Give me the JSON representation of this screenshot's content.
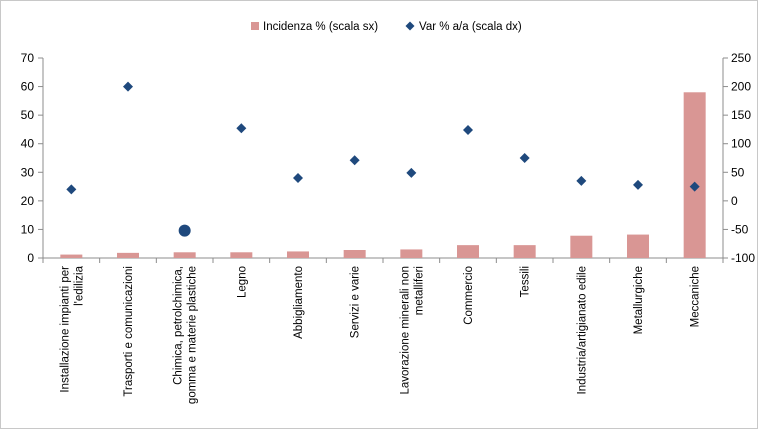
{
  "chart_data": {
    "type": "bar+scatter",
    "categories": [
      [
        "Installazione impianti per",
        "l'edilizia"
      ],
      [
        "Trasporti e comunicazioni"
      ],
      [
        "Chimica, petrolchimica,",
        "gomma e materie plastiche"
      ],
      [
        "Legno"
      ],
      [
        "Abbigliamento"
      ],
      [
        "Servizi e varie"
      ],
      [
        "Lavorazione minerali non",
        "metalliferi"
      ],
      [
        "Commercio"
      ],
      [
        "Tessili"
      ],
      [
        "Industria/artigianato edile"
      ],
      [
        "Metallurgiche"
      ],
      [
        "Meccaniche"
      ]
    ],
    "series": [
      {
        "name": "Incidenza % (scala sx)",
        "type": "bar",
        "axis": "left",
        "color": "#d99694",
        "values": [
          1.2,
          1.8,
          2.0,
          2.0,
          2.3,
          2.8,
          3.0,
          4.5,
          4.5,
          7.8,
          8.2,
          58
        ]
      },
      {
        "name": "Var % a/a (scala dx)",
        "type": "scatter",
        "axis": "right",
        "color": "#1f497d",
        "values": [
          20,
          200,
          -52,
          127,
          40,
          71,
          49,
          124,
          75,
          35,
          28,
          25
        ],
        "highlight_index": 2,
        "highlight_color": "#1f497d"
      }
    ],
    "y_left": {
      "min": 0,
      "max": 70,
      "step": 10,
      "ticks": [
        "0",
        "10",
        "20",
        "30",
        "40",
        "50",
        "60",
        "70"
      ]
    },
    "y_right": {
      "min": -100,
      "max": 250,
      "step": 50,
      "ticks": [
        "-100",
        "-50",
        "0",
        "50",
        "100",
        "150",
        "200",
        "250"
      ]
    },
    "legend_position": "top",
    "grid": false
  }
}
